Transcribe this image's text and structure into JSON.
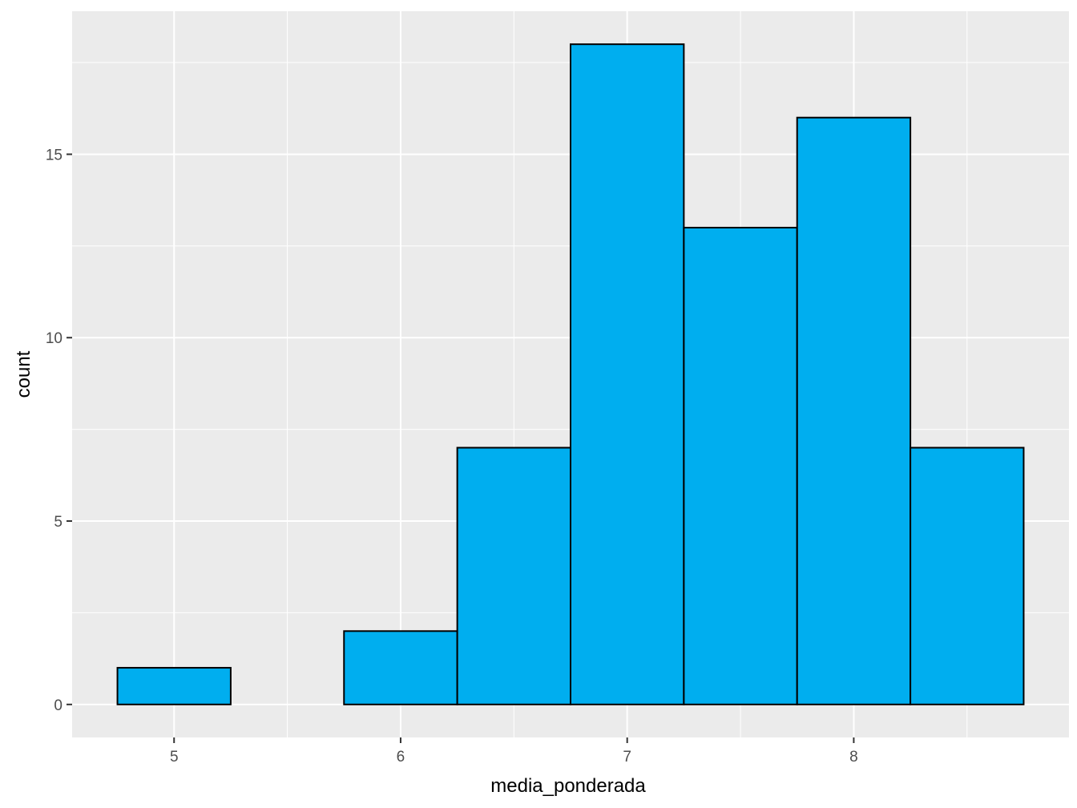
{
  "chart_data": {
    "type": "bar",
    "subtype": "histogram",
    "title": "",
    "xlabel": "media_ponderada",
    "ylabel": "count",
    "bin_width": 0.5,
    "bins": [
      {
        "start": 4.75,
        "end": 5.25,
        "count": 1
      },
      {
        "start": 5.25,
        "end": 5.75,
        "count": 0
      },
      {
        "start": 5.75,
        "end": 6.25,
        "count": 2
      },
      {
        "start": 6.25,
        "end": 6.75,
        "count": 7
      },
      {
        "start": 6.75,
        "end": 7.25,
        "count": 18
      },
      {
        "start": 7.25,
        "end": 7.75,
        "count": 13
      },
      {
        "start": 7.75,
        "end": 8.25,
        "count": 16
      },
      {
        "start": 8.25,
        "end": 8.75,
        "count": 7
      }
    ],
    "xlim": [
      4.55,
      8.95
    ],
    "ylim": [
      -0.9,
      18.9
    ],
    "x_ticks": [
      5,
      6,
      7,
      8
    ],
    "x_minor_ticks": [
      5.5,
      6.5,
      7.5,
      8.5
    ],
    "x_tick_labels": [
      "5",
      "6",
      "7",
      "8"
    ],
    "y_ticks": [
      0,
      5,
      10,
      15
    ],
    "y_minor_ticks": [
      2.5,
      7.5,
      12.5,
      17.5
    ],
    "y_tick_labels": [
      "0",
      "5",
      "10",
      "15"
    ],
    "grid": true,
    "legend": "none",
    "colors": {
      "bar_fill": "#00AEEF",
      "bar_outline": "#000000",
      "panel_background": "#EBEBEB",
      "grid": "#FFFFFF",
      "tick_label": "#4D4D4D",
      "tick_mark": "#333333"
    }
  }
}
